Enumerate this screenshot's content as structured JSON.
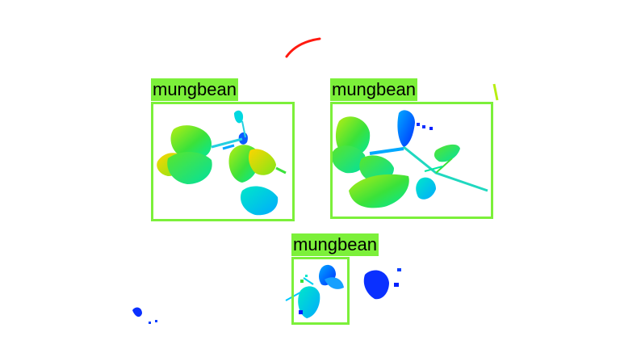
{
  "detection": {
    "box_color": "#7cf03a",
    "label_text_color": "#000000",
    "detections": [
      {
        "label": "mungbean"
      },
      {
        "label": "mungbean"
      },
      {
        "label": "mungbean"
      }
    ]
  },
  "colormap": {
    "name": "depth-jet",
    "colors": [
      "#0026ff",
      "#00aaff",
      "#00e8c8",
      "#3ae23a",
      "#b8ee12",
      "#ffd400",
      "#ff2a10"
    ]
  },
  "background_color": "#ffffff"
}
